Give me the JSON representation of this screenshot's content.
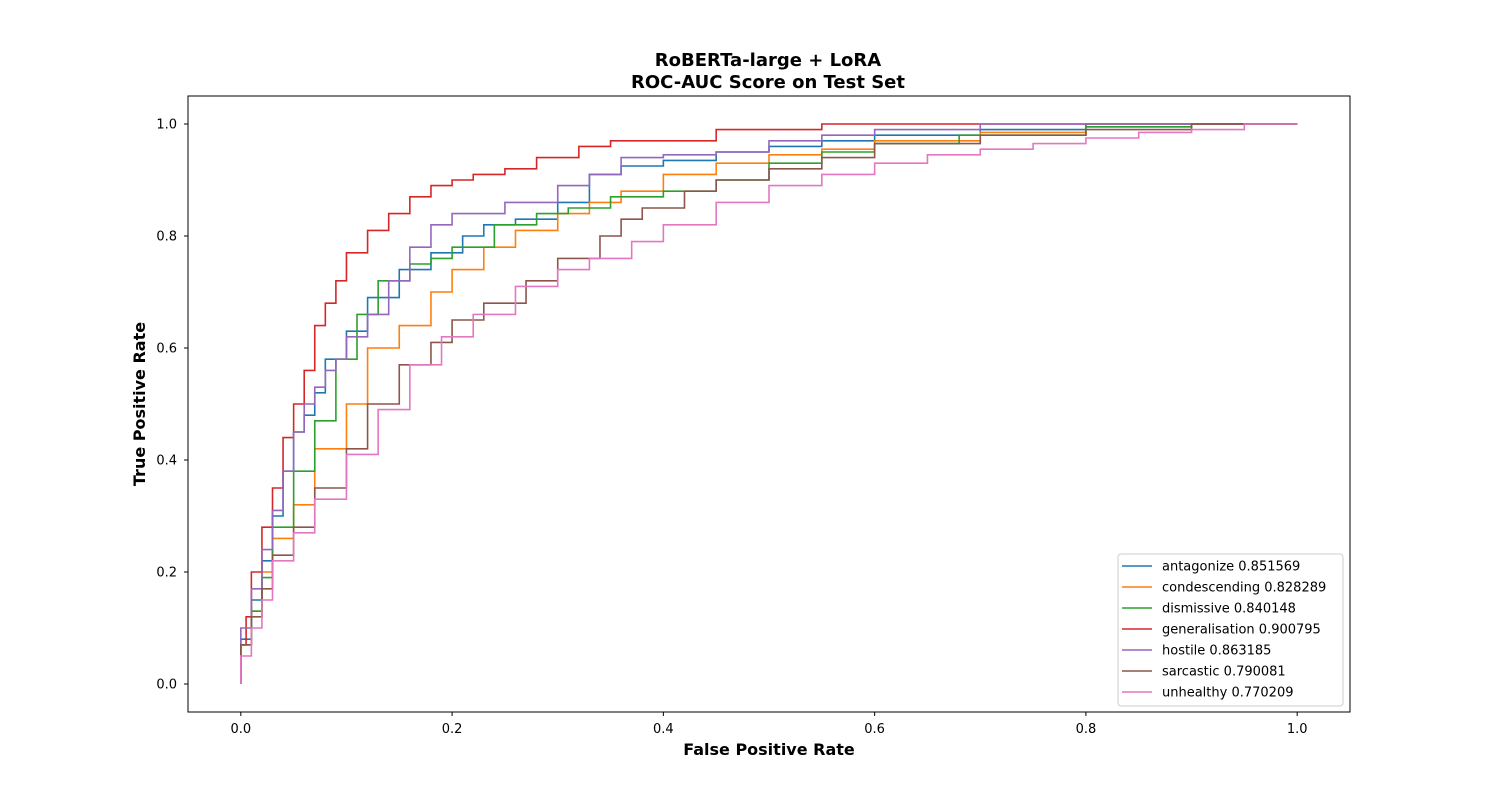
{
  "chart_data": {
    "type": "line",
    "title": "RoBERTa-large + LoRA",
    "subtitle": "ROC-AUC Score on Test Set",
    "xlabel": "False Positive Rate",
    "ylabel": "True Positive Rate",
    "xlim": [
      -0.05,
      1.05
    ],
    "ylim": [
      -0.05,
      1.05
    ],
    "xticks": [
      "0.0",
      "0.2",
      "0.4",
      "0.6",
      "0.8",
      "1.0"
    ],
    "yticks": [
      "0.0",
      "0.2",
      "0.4",
      "0.6",
      "0.8",
      "1.0"
    ],
    "grid": false,
    "legend_position": "bottom-right",
    "series": [
      {
        "name": "antagonize 0.851569",
        "color": "#1f77b4",
        "x": [
          0.0,
          0.01,
          0.02,
          0.03,
          0.04,
          0.05,
          0.06,
          0.07,
          0.08,
          0.1,
          0.12,
          0.15,
          0.18,
          0.21,
          0.23,
          0.26,
          0.3,
          0.33,
          0.36,
          0.4,
          0.45,
          0.5,
          0.55,
          0.6,
          0.7,
          0.8,
          0.9,
          1.0
        ],
        "y": [
          0.0,
          0.08,
          0.15,
          0.22,
          0.3,
          0.38,
          0.45,
          0.48,
          0.52,
          0.58,
          0.63,
          0.69,
          0.74,
          0.77,
          0.8,
          0.82,
          0.83,
          0.86,
          0.91,
          0.925,
          0.935,
          0.95,
          0.96,
          0.97,
          0.98,
          0.99,
          1.0,
          1.0
        ]
      },
      {
        "name": "condescending 0.828289",
        "color": "#ff7f0e",
        "x": [
          0.0,
          0.01,
          0.02,
          0.03,
          0.05,
          0.07,
          0.1,
          0.12,
          0.15,
          0.18,
          0.2,
          0.23,
          0.26,
          0.3,
          0.33,
          0.36,
          0.4,
          0.45,
          0.5,
          0.55,
          0.6,
          0.7,
          0.8,
          0.9,
          1.0
        ],
        "y": [
          0.0,
          0.07,
          0.13,
          0.2,
          0.26,
          0.32,
          0.42,
          0.5,
          0.6,
          0.64,
          0.7,
          0.74,
          0.78,
          0.81,
          0.84,
          0.86,
          0.88,
          0.91,
          0.93,
          0.945,
          0.955,
          0.97,
          0.985,
          0.995,
          1.0
        ]
      },
      {
        "name": "dismissive 0.840148",
        "color": "#2ca02c",
        "x": [
          0.0,
          0.01,
          0.02,
          0.03,
          0.05,
          0.07,
          0.09,
          0.11,
          0.13,
          0.16,
          0.18,
          0.2,
          0.24,
          0.28,
          0.31,
          0.35,
          0.4,
          0.45,
          0.5,
          0.55,
          0.6,
          0.68,
          0.8,
          0.9,
          1.0
        ],
        "y": [
          0.0,
          0.07,
          0.13,
          0.19,
          0.28,
          0.38,
          0.47,
          0.58,
          0.66,
          0.72,
          0.75,
          0.76,
          0.78,
          0.82,
          0.84,
          0.85,
          0.87,
          0.88,
          0.9,
          0.93,
          0.95,
          0.965,
          0.98,
          0.995,
          1.0
        ]
      },
      {
        "name": "generalisation 0.900795",
        "color": "#d62728",
        "x": [
          0.0,
          0.005,
          0.01,
          0.02,
          0.03,
          0.04,
          0.05,
          0.06,
          0.07,
          0.08,
          0.09,
          0.1,
          0.12,
          0.14,
          0.16,
          0.18,
          0.2,
          0.22,
          0.25,
          0.28,
          0.32,
          0.35,
          0.4,
          0.45,
          0.5,
          0.55,
          0.6,
          0.8,
          1.0
        ],
        "y": [
          0.0,
          0.07,
          0.12,
          0.2,
          0.28,
          0.35,
          0.44,
          0.5,
          0.56,
          0.64,
          0.68,
          0.72,
          0.77,
          0.81,
          0.84,
          0.87,
          0.89,
          0.9,
          0.91,
          0.92,
          0.94,
          0.96,
          0.97,
          0.97,
          0.99,
          0.99,
          1.0,
          1.0,
          1.0
        ]
      },
      {
        "name": "hostile 0.863185",
        "color": "#9467bd",
        "x": [
          0.0,
          0.01,
          0.02,
          0.03,
          0.04,
          0.05,
          0.06,
          0.07,
          0.08,
          0.09,
          0.1,
          0.12,
          0.14,
          0.16,
          0.18,
          0.2,
          0.25,
          0.3,
          0.33,
          0.36,
          0.4,
          0.45,
          0.5,
          0.55,
          0.6,
          0.7,
          0.85,
          1.0
        ],
        "y": [
          0.0,
          0.1,
          0.17,
          0.24,
          0.31,
          0.38,
          0.45,
          0.5,
          0.53,
          0.56,
          0.58,
          0.62,
          0.66,
          0.72,
          0.78,
          0.82,
          0.84,
          0.86,
          0.89,
          0.91,
          0.94,
          0.945,
          0.95,
          0.97,
          0.98,
          0.99,
          1.0,
          1.0
        ]
      },
      {
        "name": "sarcastic 0.790081",
        "color": "#8c564b",
        "x": [
          0.0,
          0.01,
          0.02,
          0.03,
          0.05,
          0.07,
          0.1,
          0.12,
          0.15,
          0.18,
          0.2,
          0.23,
          0.27,
          0.3,
          0.34,
          0.36,
          0.38,
          0.42,
          0.45,
          0.5,
          0.55,
          0.6,
          0.7,
          0.8,
          0.9,
          1.0
        ],
        "y": [
          0.0,
          0.07,
          0.12,
          0.17,
          0.23,
          0.28,
          0.35,
          0.42,
          0.5,
          0.57,
          0.61,
          0.65,
          0.68,
          0.72,
          0.76,
          0.8,
          0.83,
          0.85,
          0.88,
          0.9,
          0.92,
          0.94,
          0.965,
          0.98,
          0.99,
          1.0
        ]
      },
      {
        "name": "unhealthy 0.770209",
        "color": "#e377c2",
        "x": [
          0.0,
          0.01,
          0.02,
          0.03,
          0.05,
          0.07,
          0.1,
          0.13,
          0.16,
          0.19,
          0.22,
          0.26,
          0.3,
          0.33,
          0.37,
          0.4,
          0.45,
          0.5,
          0.55,
          0.6,
          0.65,
          0.7,
          0.75,
          0.8,
          0.85,
          0.9,
          0.95,
          1.0
        ],
        "y": [
          0.0,
          0.05,
          0.1,
          0.15,
          0.22,
          0.27,
          0.33,
          0.41,
          0.49,
          0.57,
          0.62,
          0.66,
          0.71,
          0.74,
          0.76,
          0.79,
          0.82,
          0.86,
          0.89,
          0.91,
          0.93,
          0.945,
          0.955,
          0.965,
          0.975,
          0.985,
          0.99,
          1.0
        ]
      }
    ]
  }
}
